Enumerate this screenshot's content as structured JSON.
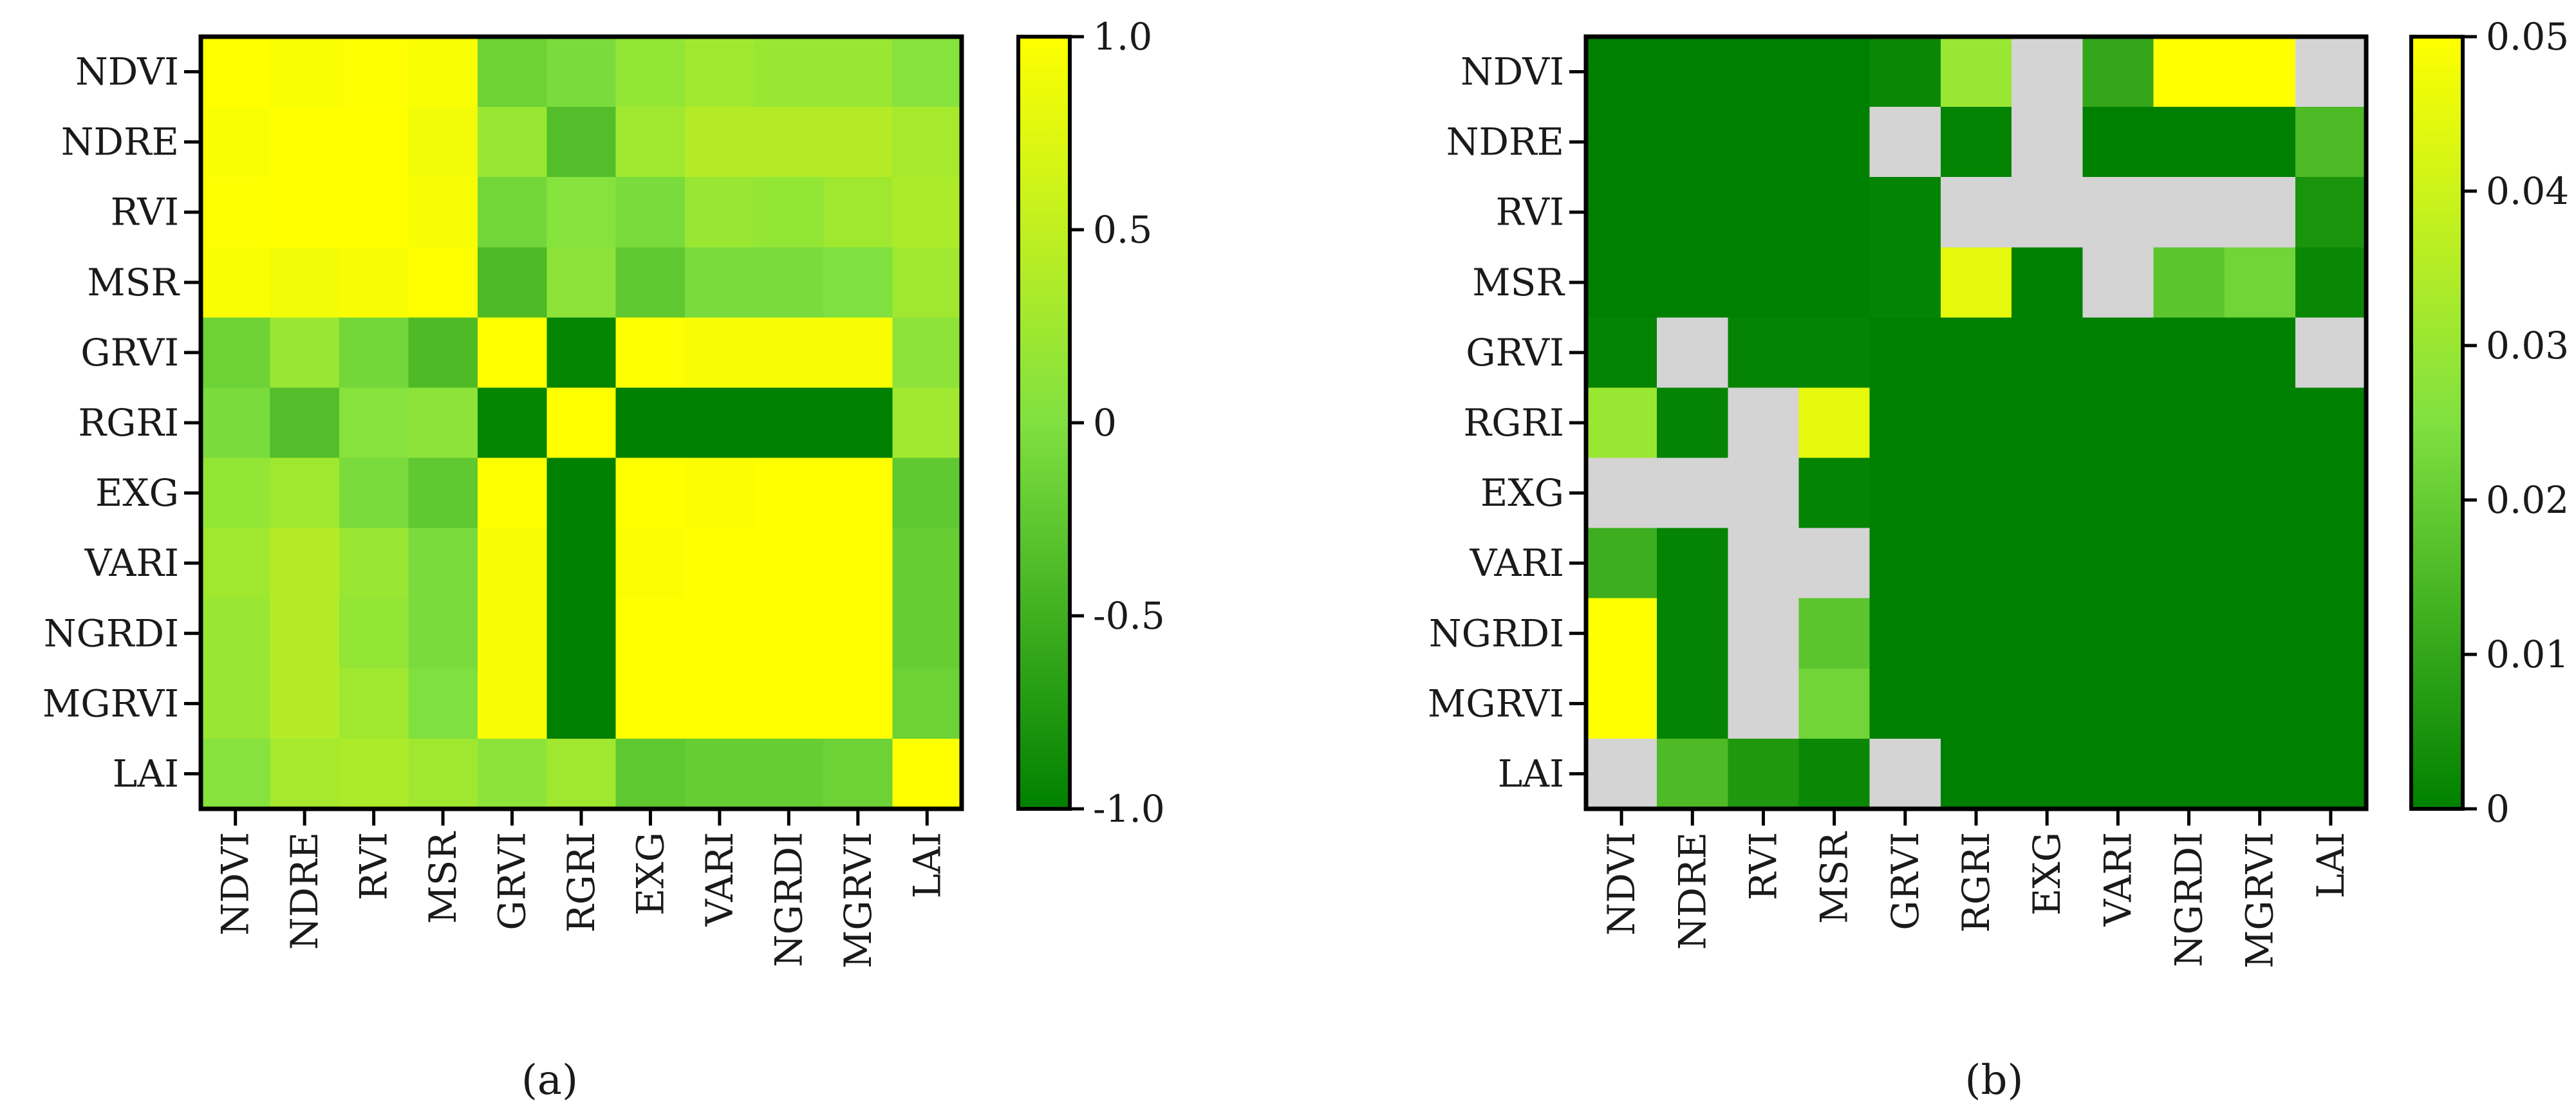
{
  "chart_data": [
    {
      "type": "heatmap",
      "panel": "(a)",
      "panel_letter": "a",
      "description": "Correlation coefficient matrix",
      "rows": [
        "NDVI",
        "NDRE",
        "RVI",
        "MSR",
        "GRVI",
        "RGRI",
        "EXG",
        "VARI",
        "NGRDI",
        "MGRVI",
        "LAI"
      ],
      "cols": [
        "NDVI",
        "NDRE",
        "RVI",
        "MSR",
        "GRVI",
        "RGRI",
        "EXG",
        "VARI",
        "NGRDI",
        "MGRVI",
        "LAI"
      ],
      "values": [
        [
          1.0,
          0.96,
          0.98,
          0.96,
          -0.15,
          -0.05,
          0.15,
          0.25,
          0.2,
          0.2,
          0.05
        ],
        [
          0.96,
          1.0,
          1.0,
          0.9,
          0.2,
          -0.35,
          0.25,
          0.4,
          0.4,
          0.4,
          0.3
        ],
        [
          0.98,
          1.0,
          1.0,
          0.95,
          -0.1,
          0.05,
          -0.05,
          0.2,
          0.15,
          0.25,
          0.35
        ],
        [
          0.96,
          0.9,
          0.95,
          1.0,
          -0.4,
          0.1,
          -0.25,
          -0.05,
          -0.05,
          0.0,
          0.25
        ],
        [
          -0.15,
          0.2,
          -0.1,
          -0.4,
          1.0,
          -0.95,
          0.98,
          0.95,
          0.95,
          0.95,
          0.1
        ],
        [
          -0.05,
          -0.35,
          0.05,
          0.1,
          -0.95,
          1.0,
          -1.0,
          -1.0,
          -1.0,
          -1.0,
          0.25
        ],
        [
          0.15,
          0.25,
          -0.05,
          -0.25,
          0.98,
          -1.0,
          1.0,
          0.97,
          1.0,
          1.0,
          -0.25
        ],
        [
          0.25,
          0.4,
          0.2,
          -0.05,
          0.95,
          -1.0,
          0.97,
          1.0,
          1.0,
          1.0,
          -0.2
        ],
        [
          0.2,
          0.4,
          0.15,
          -0.05,
          0.95,
          -1.0,
          1.0,
          1.0,
          1.0,
          1.0,
          -0.2
        ],
        [
          0.2,
          0.4,
          0.25,
          0.0,
          0.95,
          -1.0,
          1.0,
          1.0,
          1.0,
          1.0,
          -0.15
        ],
        [
          0.05,
          0.3,
          0.35,
          0.25,
          0.1,
          0.25,
          -0.25,
          -0.2,
          -0.2,
          -0.15,
          1.0
        ]
      ],
      "colorbar": {
        "min": -1.0,
        "max": 1.0,
        "ticks": [
          1.0,
          0.5,
          0,
          -0.5,
          -1.0
        ],
        "tick_labels": [
          "1.0",
          "0.5",
          "0",
          "-0.5",
          "-1.0"
        ],
        "color_low": "#008000",
        "color_mid": "#80e040",
        "color_high": "#ffff00"
      }
    },
    {
      "type": "heatmap",
      "panel": "(b)",
      "panel_letter": "b",
      "description": "Significance p-value matrix; null cells shown in grey",
      "rows": [
        "NDVI",
        "NDRE",
        "RVI",
        "MSR",
        "GRVI",
        "RGRI",
        "EXG",
        "VARI",
        "NGRDI",
        "MGRVI",
        "LAI"
      ],
      "cols": [
        "NDVI",
        "NDRE",
        "RVI",
        "MSR",
        "GRVI",
        "RGRI",
        "EXG",
        "VARI",
        "NGRDI",
        "MGRVI",
        "LAI"
      ],
      "values": [
        [
          0,
          0,
          0,
          0,
          0.002,
          0.03,
          null,
          0.01,
          0.05,
          0.05,
          null
        ],
        [
          0,
          0,
          0,
          0,
          null,
          0.001,
          null,
          0,
          0,
          0,
          0.015
        ],
        [
          0,
          0,
          0,
          0,
          0.001,
          null,
          null,
          null,
          null,
          null,
          0.005
        ],
        [
          0,
          0,
          0,
          0,
          0.001,
          0.045,
          0,
          null,
          0.018,
          0.022,
          0.002
        ],
        [
          0.001,
          null,
          0.001,
          0.001,
          0,
          0,
          0,
          0,
          0,
          0,
          null
        ],
        [
          0.03,
          0.001,
          null,
          0.045,
          0,
          0,
          0,
          0,
          0,
          0,
          0
        ],
        [
          null,
          null,
          null,
          0.001,
          0,
          0,
          0,
          0,
          0,
          0,
          0
        ],
        [
          0.012,
          0.001,
          null,
          null,
          0,
          0,
          0,
          0,
          0,
          0,
          0
        ],
        [
          0.05,
          0.001,
          null,
          0.018,
          0,
          0,
          0,
          0,
          0,
          0,
          0
        ],
        [
          0.05,
          0.001,
          null,
          0.022,
          0,
          0,
          0,
          0,
          0,
          0,
          0
        ],
        [
          null,
          0.015,
          0.006,
          0.002,
          null,
          0,
          0,
          0,
          0,
          0,
          0
        ]
      ],
      "null_color": "#d4d4d4",
      "colorbar": {
        "min": 0,
        "max": 0.05,
        "ticks": [
          0.05,
          0.04,
          0.03,
          0.02,
          0.01,
          0
        ],
        "tick_labels": [
          "0.05",
          "0.04",
          "0.03",
          "0.02",
          "0.01",
          "0"
        ],
        "color_low": "#008000",
        "color_mid": "#80e040",
        "color_high": "#ffff00"
      }
    }
  ],
  "captions": {
    "a": "(a)",
    "b": "(b)"
  }
}
